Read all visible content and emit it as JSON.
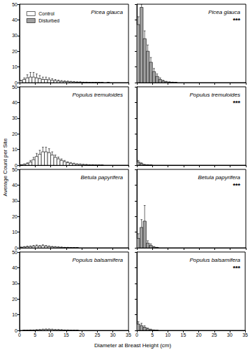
{
  "xlabel": "Diameter at Breast Height (cm)",
  "ylabel": "Average Count per Site",
  "chart_data": [
    {
      "type": "histogram",
      "title": "Picea glauca",
      "legend": "upper left",
      "tick_labels": "y",
      "grid": false,
      "bins": [
        0,
        1,
        2,
        3,
        4,
        5,
        6,
        7,
        8,
        9,
        10,
        11,
        12,
        13,
        14,
        15,
        16,
        17,
        18,
        19,
        20,
        21,
        22,
        23,
        24,
        25,
        26,
        27,
        28,
        29,
        30,
        31,
        32,
        33,
        34,
        35
      ],
      "series": [
        {
          "name": "Control",
          "color": "#ffffff",
          "values": [
            1,
            2,
            3,
            3.5,
            3.5,
            3,
            2.5,
            2,
            2,
            1.8,
            1.5,
            1.2,
            1,
            0.8,
            0.7,
            0.6,
            0.5,
            0.4,
            0.3,
            0.3,
            0.2,
            0.2,
            0.1,
            0.1,
            0.1,
            0.1,
            0.1,
            0,
            0.1,
            0,
            0,
            0,
            0,
            0,
            0
          ],
          "errors": [
            0.5,
            1,
            2,
            3,
            3,
            2.5,
            2,
            1.5,
            1.5,
            1.2,
            1,
            0.8,
            0.6,
            0.5,
            0.4,
            0.4,
            0.3,
            0.3,
            0.2,
            0.2,
            0.1,
            0.1,
            0.1,
            0.1,
            0.1,
            0.1,
            0.1,
            0,
            0.1,
            0,
            0,
            0,
            0,
            0,
            0
          ]
        }
      ],
      "xlim": [
        0,
        35
      ],
      "xticks": [
        0,
        5,
        10,
        15,
        20,
        25,
        30,
        35
      ],
      "ylim": [
        0,
        50
      ],
      "yticks": [
        0,
        10,
        20,
        30,
        40,
        50
      ]
    },
    {
      "type": "histogram",
      "title": "Picea glauca",
      "annotation": "***",
      "tick_labels": false,
      "grid": false,
      "bins": [
        0,
        1,
        2,
        3,
        4,
        5,
        6,
        7,
        8,
        9,
        10,
        11,
        12,
        13,
        14,
        15,
        16,
        17,
        18,
        19,
        20,
        21,
        22,
        23,
        24,
        25,
        26,
        27,
        28,
        29,
        30,
        31,
        32,
        33,
        34,
        35
      ],
      "series": [
        {
          "name": "Disturbed",
          "color": "#a0a0a0",
          "values": [
            37,
            48,
            28,
            20,
            13,
            7,
            4,
            2,
            1,
            0.5,
            0.3,
            0.2,
            0.1,
            0,
            0,
            0,
            0,
            0,
            0,
            0,
            0,
            0,
            0,
            0,
            0,
            0,
            0,
            0,
            0,
            0,
            0,
            0,
            0,
            0,
            0
          ],
          "errors": [
            5,
            2,
            5,
            4,
            3,
            2,
            1.5,
            1,
            0.5,
            0.3,
            0.2,
            0.1,
            0.1,
            0,
            0,
            0,
            0,
            0,
            0,
            0,
            0,
            0,
            0,
            0,
            0,
            0,
            0,
            0,
            0,
            0,
            0,
            0,
            0,
            0,
            0
          ]
        }
      ],
      "xlim": [
        0,
        35
      ],
      "xticks": [
        0,
        5,
        10,
        15,
        20,
        25,
        30,
        35
      ],
      "ylim": [
        0,
        50
      ],
      "yticks": [
        0,
        10,
        20,
        30,
        40,
        50
      ]
    },
    {
      "type": "histogram",
      "title": "Populus tremuloides",
      "tick_labels": "y",
      "grid": false,
      "bins": [
        0,
        1,
        2,
        3,
        4,
        5,
        6,
        7,
        8,
        9,
        10,
        11,
        12,
        13,
        14,
        15,
        16,
        17,
        18,
        19,
        20,
        21,
        22,
        23,
        24,
        25,
        26,
        27,
        28,
        29,
        30,
        31,
        32,
        33,
        34,
        35
      ],
      "series": [
        {
          "name": "Control",
          "color": "#ffffff",
          "values": [
            0.2,
            0.5,
            1,
            2,
            3.5,
            5.5,
            7,
            8.5,
            8.5,
            8,
            6.5,
            5,
            4,
            3,
            2.2,
            1.6,
            1.2,
            0.9,
            0.6,
            0.5,
            0.4,
            0.3,
            0.2,
            0.2,
            0.1,
            0.1,
            0.1,
            0,
            0,
            0,
            0,
            0,
            0,
            0,
            0
          ],
          "errors": [
            0.1,
            0.3,
            0.5,
            1,
            1.5,
            2,
            2.5,
            3,
            3,
            2.5,
            2,
            1.5,
            1.2,
            1,
            0.8,
            0.6,
            0.5,
            0.4,
            0.3,
            0.3,
            0.2,
            0.2,
            0.1,
            0.1,
            0.1,
            0.1,
            0.1,
            0,
            0,
            0,
            0,
            0,
            0,
            0,
            0
          ]
        }
      ],
      "xlim": [
        0,
        35
      ],
      "xticks": [
        0,
        5,
        10,
        15,
        20,
        25,
        30,
        35
      ],
      "ylim": [
        0,
        50
      ],
      "yticks": [
        0,
        10,
        20,
        30,
        40,
        50
      ]
    },
    {
      "type": "histogram",
      "title": "Populus tremuloides",
      "annotation": "***",
      "tick_labels": false,
      "grid": false,
      "bins": [
        0,
        1,
        2,
        3,
        4,
        5,
        6,
        7,
        8,
        9,
        10,
        11,
        12,
        13,
        14,
        15,
        16,
        17,
        18,
        19,
        20,
        21,
        22,
        23,
        24,
        25,
        26,
        27,
        28,
        29,
        30,
        31,
        32,
        33,
        34,
        35
      ],
      "series": [
        {
          "name": "Disturbed",
          "color": "#a0a0a0",
          "values": [
            2,
            1,
            0.3,
            0.2,
            0.1,
            0,
            0,
            0,
            0,
            0,
            0,
            0,
            0,
            0,
            0,
            0,
            0,
            0,
            0,
            0,
            0,
            0,
            0,
            0,
            0,
            0,
            0,
            0,
            0,
            0,
            0,
            0,
            0,
            0,
            0
          ],
          "errors": [
            1,
            0.5,
            0.2,
            0.1,
            0.1,
            0,
            0,
            0,
            0,
            0,
            0,
            0,
            0,
            0,
            0,
            0,
            0,
            0,
            0,
            0,
            0,
            0,
            0,
            0,
            0,
            0,
            0,
            0,
            0,
            0,
            0,
            0,
            0,
            0,
            0
          ]
        }
      ],
      "xlim": [
        0,
        35
      ],
      "xticks": [
        0,
        5,
        10,
        15,
        20,
        25,
        30,
        35
      ],
      "ylim": [
        0,
        50
      ],
      "yticks": [
        0,
        10,
        20,
        30,
        40,
        50
      ]
    },
    {
      "type": "histogram",
      "title": "Betula papyrifera",
      "tick_labels": "y",
      "grid": false,
      "bins": [
        0,
        1,
        2,
        3,
        4,
        5,
        6,
        7,
        8,
        9,
        10,
        11,
        12,
        13,
        14,
        15,
        16,
        17,
        18,
        19,
        20,
        21,
        22,
        23,
        24,
        25,
        26,
        27,
        28,
        29,
        30,
        31,
        32,
        33,
        34,
        35
      ],
      "series": [
        {
          "name": "Control",
          "color": "#ffffff",
          "values": [
            0.3,
            0.5,
            0.7,
            0.8,
            1,
            1.2,
            1,
            1.3,
            1,
            0.8,
            0.6,
            0.5,
            0.4,
            0.3,
            0.2,
            0.2,
            0.1,
            0.1,
            0.1,
            0,
            0,
            0,
            0,
            0,
            0,
            0,
            0,
            0,
            0,
            0,
            0,
            0,
            0,
            0,
            0
          ],
          "errors": [
            0.2,
            0.3,
            0.4,
            0.4,
            0.5,
            0.6,
            0.5,
            0.6,
            0.5,
            0.4,
            0.3,
            0.3,
            0.2,
            0.2,
            0.1,
            0.1,
            0.1,
            0.1,
            0.1,
            0,
            0,
            0,
            0,
            0,
            0,
            0,
            0,
            0,
            0,
            0,
            0,
            0,
            0,
            0,
            0
          ]
        }
      ],
      "xlim": [
        0,
        35
      ],
      "xticks": [
        0,
        5,
        10,
        15,
        20,
        25,
        30,
        35
      ],
      "ylim": [
        0,
        50
      ],
      "yticks": [
        0,
        10,
        20,
        30,
        40,
        50
      ]
    },
    {
      "type": "histogram",
      "title": "Betula papyrifera",
      "annotation": "***",
      "tick_labels": false,
      "grid": false,
      "bins": [
        0,
        1,
        2,
        3,
        4,
        5,
        6,
        7,
        8,
        9,
        10,
        11,
        12,
        13,
        14,
        15,
        16,
        17,
        18,
        19,
        20,
        21,
        22,
        23,
        24,
        25,
        26,
        27,
        28,
        29,
        30,
        31,
        32,
        33,
        34,
        35
      ],
      "series": [
        {
          "name": "Disturbed",
          "color": "#a0a0a0",
          "values": [
            6,
            13,
            17,
            3,
            1.5,
            0.5,
            0.2,
            0,
            0,
            0,
            0,
            0,
            0,
            0,
            0,
            0,
            0,
            0,
            0,
            0,
            0,
            0,
            0,
            0,
            0,
            0,
            0,
            0,
            0,
            0,
            0,
            0,
            0,
            0,
            0
          ],
          "errors": [
            3,
            5,
            10,
            1.5,
            1,
            0.3,
            0.1,
            0,
            0,
            0,
            0,
            0,
            0,
            0,
            0,
            0,
            0,
            0,
            0,
            0,
            0,
            0,
            0,
            0,
            0,
            0,
            0,
            0,
            0,
            0,
            0,
            0,
            0,
            0,
            0
          ]
        }
      ],
      "xlim": [
        0,
        35
      ],
      "xticks": [
        0,
        5,
        10,
        15,
        20,
        25,
        30,
        35
      ],
      "ylim": [
        0,
        50
      ],
      "yticks": [
        0,
        10,
        20,
        30,
        40,
        50
      ]
    },
    {
      "type": "histogram",
      "title": "Populus balsamifera",
      "tick_labels": true,
      "grid": false,
      "bins": [
        0,
        1,
        2,
        3,
        4,
        5,
        6,
        7,
        8,
        9,
        10,
        11,
        12,
        13,
        14,
        15,
        16,
        17,
        18,
        19,
        20,
        21,
        22,
        23,
        24,
        25,
        26,
        27,
        28,
        29,
        30,
        31,
        32,
        33,
        34,
        35
      ],
      "series": [
        {
          "name": "Control",
          "color": "#ffffff",
          "values": [
            0,
            0.1,
            0.1,
            0.2,
            0.2,
            0.3,
            0.4,
            0.5,
            0.6,
            0.6,
            0.5,
            0.4,
            0.4,
            0.3,
            0.2,
            0.2,
            0.1,
            0.1,
            0.1,
            0,
            0,
            0,
            0,
            0,
            0,
            0,
            0,
            0,
            0,
            0,
            0,
            0,
            0,
            0,
            0
          ],
          "errors": [
            0,
            0.1,
            0.1,
            0.1,
            0.1,
            0.2,
            0.2,
            0.3,
            0.3,
            0.3,
            0.3,
            0.2,
            0.2,
            0.2,
            0.1,
            0.1,
            0.1,
            0.1,
            0.1,
            0,
            0,
            0,
            0,
            0,
            0,
            0,
            0,
            0,
            0,
            0,
            0,
            0,
            0,
            0,
            0
          ]
        }
      ],
      "xlim": [
        0,
        35
      ],
      "xticks": [
        0,
        5,
        10,
        15,
        20,
        25,
        30,
        35
      ],
      "ylim": [
        0,
        50
      ],
      "yticks": [
        0,
        10,
        20,
        30,
        40,
        50
      ]
    },
    {
      "type": "histogram",
      "title": "Populus balsamifera",
      "annotation": "***",
      "tick_labels": "x",
      "grid": false,
      "bins": [
        0,
        1,
        2,
        3,
        4,
        5,
        6,
        7,
        8,
        9,
        10,
        11,
        12,
        13,
        14,
        15,
        16,
        17,
        18,
        19,
        20,
        21,
        22,
        23,
        24,
        25,
        26,
        27,
        28,
        29,
        30,
        31,
        32,
        33,
        34,
        35
      ],
      "series": [
        {
          "name": "Disturbed",
          "color": "#a0a0a0",
          "values": [
            4,
            3,
            2,
            1,
            0.5,
            0.2,
            0.1,
            0,
            0,
            0,
            0,
            0,
            0,
            0,
            0,
            0,
            0,
            0,
            0,
            0,
            0,
            0,
            0,
            0,
            0,
            0,
            0,
            0,
            0,
            0,
            0,
            0,
            0,
            0,
            0
          ],
          "errors": [
            1.5,
            1.5,
            1,
            0.5,
            0.3,
            0.1,
            0.1,
            0,
            0,
            0,
            0,
            0,
            0,
            0,
            0,
            0,
            0,
            0,
            0,
            0,
            0,
            0,
            0,
            0,
            0,
            0,
            0,
            0,
            0,
            0,
            0,
            0,
            0,
            0,
            0
          ]
        }
      ],
      "xlim": [
        0,
        35
      ],
      "xticks": [
        0,
        5,
        10,
        15,
        20,
        25,
        30,
        35
      ],
      "ylim": [
        0,
        50
      ],
      "yticks": [
        0,
        10,
        20,
        30,
        40,
        50
      ]
    }
  ]
}
